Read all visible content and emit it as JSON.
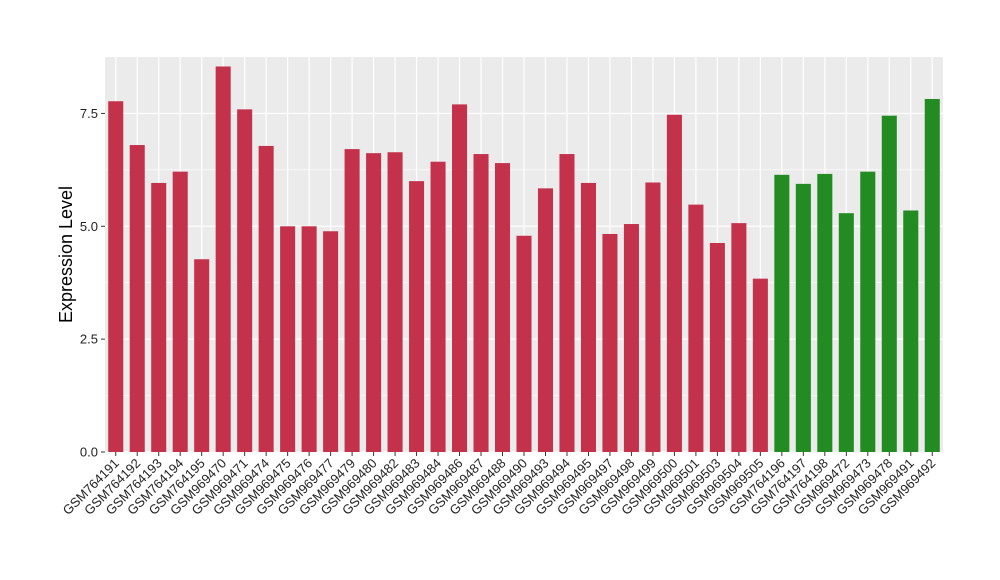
{
  "chart_data": {
    "type": "bar",
    "xlabel": "",
    "ylabel": "Expression Level",
    "ylim": [
      0,
      8.75
    ],
    "yticks": [
      0,
      2.5,
      5,
      7.5
    ],
    "ytick_labels": [
      "0.0",
      "2.5",
      "5.0",
      "7.5"
    ],
    "grid": true,
    "legend": "none",
    "colors": {
      "group1": "#c4314b",
      "group2": "#228b22",
      "panel": "#ebebeb",
      "grid": "#ffffff"
    },
    "categories": [
      "GSM764191",
      "GSM764192",
      "GSM764193",
      "GSM764194",
      "GSM764195",
      "GSM969470",
      "GSM969471",
      "GSM969474",
      "GSM969475",
      "GSM969476",
      "GSM969477",
      "GSM969479",
      "GSM969480",
      "GSM969482",
      "GSM969483",
      "GSM969484",
      "GSM969486",
      "GSM969487",
      "GSM969488",
      "GSM969490",
      "GSM969493",
      "GSM969494",
      "GSM969495",
      "GSM969497",
      "GSM969498",
      "GSM969499",
      "GSM969500",
      "GSM969501",
      "GSM969503",
      "GSM969504",
      "GSM969505",
      "GSM764196",
      "GSM764197",
      "GSM764198",
      "GSM969472",
      "GSM969473",
      "GSM969478",
      "GSM969491",
      "GSM969492"
    ],
    "values": [
      7.77,
      6.8,
      5.96,
      6.21,
      4.27,
      8.54,
      7.59,
      6.78,
      5.0,
      5.0,
      4.89,
      6.71,
      6.62,
      6.64,
      6.0,
      6.43,
      7.7,
      6.6,
      6.4,
      4.79,
      5.84,
      6.6,
      5.96,
      4.83,
      5.05,
      5.97,
      7.47,
      5.48,
      4.63,
      5.07,
      3.84,
      6.14,
      5.94,
      6.16,
      5.29,
      6.21,
      7.45,
      5.35,
      7.82
    ],
    "groups": [
      "group1",
      "group1",
      "group1",
      "group1",
      "group1",
      "group1",
      "group1",
      "group1",
      "group1",
      "group1",
      "group1",
      "group1",
      "group1",
      "group1",
      "group1",
      "group1",
      "group1",
      "group1",
      "group1",
      "group1",
      "group1",
      "group1",
      "group1",
      "group1",
      "group1",
      "group1",
      "group1",
      "group1",
      "group1",
      "group1",
      "group1",
      "group2",
      "group2",
      "group2",
      "group2",
      "group2",
      "group2",
      "group2",
      "group2"
    ]
  }
}
